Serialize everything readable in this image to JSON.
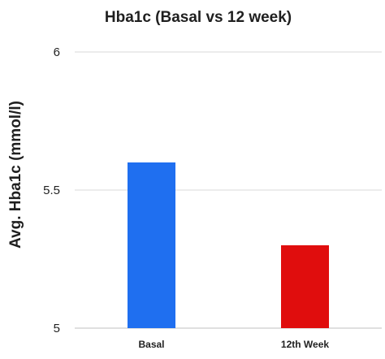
{
  "chart_data": {
    "type": "bar",
    "title": "Hba1c (Basal vs 12 week)",
    "xlabel": "",
    "ylabel": "Avg. Hba1c (mmol/l)",
    "categories": [
      "Basal",
      "12th Week"
    ],
    "values": [
      5.6,
      5.3
    ],
    "colors": [
      "#1f6ff0",
      "#e00d0d"
    ],
    "ylim": [
      5,
      6
    ],
    "yticks": [
      "5",
      "5.5",
      "6"
    ],
    "grid": true
  }
}
